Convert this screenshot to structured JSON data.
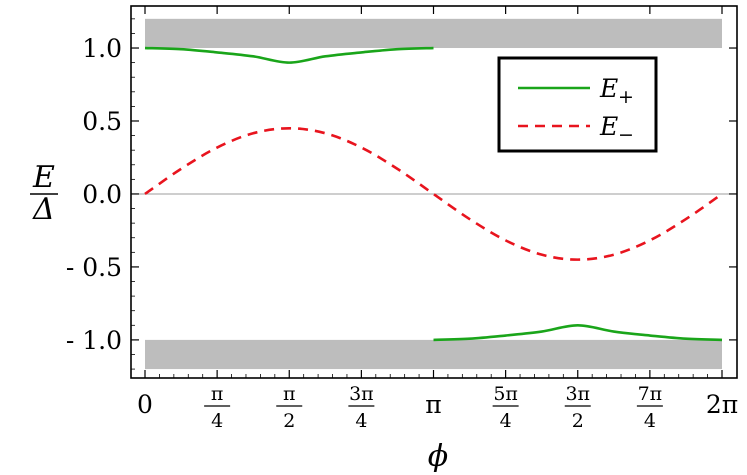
{
  "chart_data": {
    "type": "line",
    "xlabel": "ϕ",
    "ylabel": {
      "num": "E",
      "den": "Δ"
    },
    "xlim": [
      0,
      6.2832
    ],
    "ylim": [
      -1.22,
      1.24
    ],
    "x_ticks": [
      {
        "value": 0,
        "label": "0"
      },
      {
        "value": 0.7854,
        "num": "π",
        "den": "4"
      },
      {
        "value": 1.5708,
        "num": "π",
        "den": "2"
      },
      {
        "value": 2.3562,
        "num": "3π",
        "den": "4"
      },
      {
        "value": 3.1416,
        "label": "π"
      },
      {
        "value": 3.927,
        "num": "5π",
        "den": "4"
      },
      {
        "value": 4.7124,
        "num": "3π",
        "den": "2"
      },
      {
        "value": 5.4978,
        "num": "7π",
        "den": "4"
      },
      {
        "value": 6.2832,
        "label": "2π"
      }
    ],
    "y_ticks": [
      {
        "value": 1.0,
        "label": "1.0"
      },
      {
        "value": 0.5,
        "label": "0.5"
      },
      {
        "value": 0.0,
        "label": "0.0"
      },
      {
        "value": -0.5,
        "label": "- 0.5"
      },
      {
        "value": -1.0,
        "label": "- 1.0"
      }
    ],
    "bands": [
      {
        "y_range": [
          1.0,
          1.2
        ],
        "color": "#bdbdbd"
      },
      {
        "y_range": [
          -1.2,
          -1.0
        ],
        "color": "#bdbdbd"
      }
    ],
    "zero_line": true,
    "series": [
      {
        "name": "E",
        "subscript": "+",
        "style": "solid",
        "color": "#1aa51a",
        "segments": [
          {
            "x": [
              0,
              0.3927,
              0.7854,
              1.1781,
              1.5708,
              1.9635,
              2.3562,
              2.7489,
              3.1416
            ],
            "y": [
              1.0,
              0.992,
              0.97,
              0.943,
              0.9,
              0.943,
              0.97,
              0.992,
              1.0
            ]
          },
          {
            "x": [
              3.1416,
              3.5343,
              3.927,
              4.3197,
              4.7124,
              5.1051,
              5.4978,
              5.8905,
              6.2832
            ],
            "y": [
              -1.0,
              -0.992,
              -0.97,
              -0.943,
              -0.9,
              -0.943,
              -0.97,
              -0.992,
              -1.0
            ]
          }
        ]
      },
      {
        "name": "E",
        "subscript": "−",
        "style": "dashed",
        "color": "#e8141e",
        "segments": [
          {
            "x": [
              0,
              0.3927,
              0.7854,
              1.1781,
              1.5708,
              1.9635,
              2.3562,
              2.7489,
              3.1416,
              3.5343,
              3.927,
              4.3197,
              4.7124,
              5.1051,
              5.4978,
              5.8905,
              6.2832
            ],
            "y": [
              0,
              0.172,
              0.318,
              0.416,
              0.45,
              0.416,
              0.318,
              0.172,
              0,
              -0.172,
              -0.318,
              -0.416,
              -0.45,
              -0.416,
              -0.318,
              -0.172,
              0
            ]
          }
        ]
      }
    ],
    "legend": {
      "position": "top-right"
    }
  }
}
